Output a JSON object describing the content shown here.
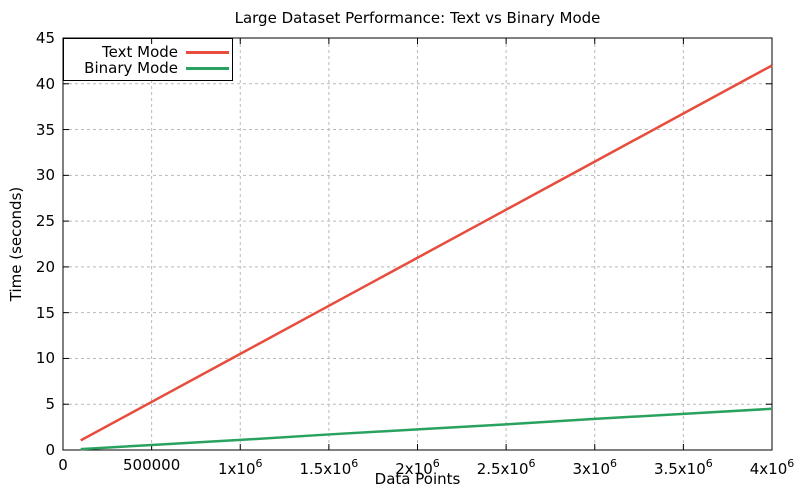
{
  "colors": {
    "background": "#ffffff",
    "border": "#000000",
    "grid": "#b9b9b9",
    "text": "#000000",
    "text_mode_line": "#e74c3c",
    "binary_mode_line": "#2aa25f"
  },
  "legend": {
    "position": "top-left",
    "entries": [
      {
        "label": "Text Mode",
        "color": "#e74c3c"
      },
      {
        "label": "Binary Mode",
        "color": "#2aa25f"
      }
    ]
  },
  "chart_data": {
    "type": "line",
    "title": "Large Dataset Performance: Text vs Binary Mode",
    "xlabel": "Data Points",
    "ylabel": "Time (seconds)",
    "xlim": [
      0,
      4000000
    ],
    "ylim": [
      0,
      45
    ],
    "grid": true,
    "grid_style": "dashed",
    "legend_position": "top-left boxed",
    "x": [
      100000,
      500000,
      1000000,
      1500000,
      2000000,
      2500000,
      3000000,
      3500000,
      4000000
    ],
    "series": [
      {
        "name": "Text Mode",
        "color": "#e74c3c",
        "values": [
          1.05,
          5.25,
          10.5,
          15.75,
          21.0,
          26.25,
          31.5,
          36.75,
          42.0
        ]
      },
      {
        "name": "Binary Mode",
        "color": "#2aa25f",
        "values": [
          0.1,
          0.55,
          1.1,
          1.7,
          2.25,
          2.8,
          3.4,
          3.95,
          4.5
        ]
      }
    ],
    "x_ticks": [
      {
        "value": 0,
        "label": "0",
        "exp": ""
      },
      {
        "value": 500000,
        "label": "500000",
        "exp": ""
      },
      {
        "value": 1000000,
        "label": "1x10",
        "exp": "6"
      },
      {
        "value": 1500000,
        "label": "1.5x10",
        "exp": "6"
      },
      {
        "value": 2000000,
        "label": "2x10",
        "exp": "6"
      },
      {
        "value": 2500000,
        "label": "2.5x10",
        "exp": "6"
      },
      {
        "value": 3000000,
        "label": "3x10",
        "exp": "6"
      },
      {
        "value": 3500000,
        "label": "3.5x10",
        "exp": "6"
      },
      {
        "value": 4000000,
        "label": "4x10",
        "exp": "6"
      }
    ],
    "y_ticks": [
      0,
      5,
      10,
      15,
      20,
      25,
      30,
      35,
      40,
      45
    ]
  }
}
